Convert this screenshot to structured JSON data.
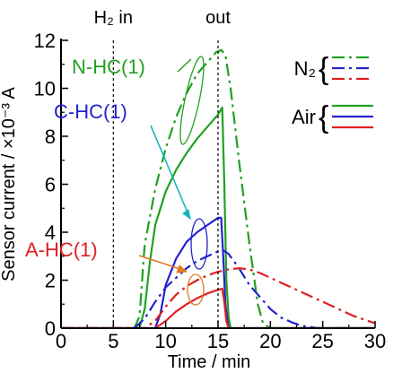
{
  "chart_data": {
    "type": "line",
    "xlabel": "Time / min",
    "ylabel": "Sensor current / ×10⁻³ A",
    "xlim": [
      0,
      30
    ],
    "ylim": [
      0,
      12
    ],
    "xticks": [
      0,
      5,
      10,
      15,
      20,
      25,
      30
    ],
    "yticks": [
      0,
      2,
      4,
      6,
      8,
      10,
      12
    ],
    "grid": false,
    "events": [
      {
        "x": 5,
        "label": "H₂ in"
      },
      {
        "x": 15,
        "label": "out"
      }
    ],
    "legend": [
      {
        "label": "N₂",
        "dash": "dash-dot",
        "brace": "{"
      },
      {
        "label": "Air",
        "dash": "solid",
        "brace": "{"
      }
    ],
    "series": [
      {
        "name": "N-HC(1)",
        "gas": "N₂",
        "color": "#22a022",
        "dash": "dash-dot",
        "x": [
          0,
          7,
          7.5,
          8,
          9,
          10,
          11,
          12,
          13,
          14,
          14.8,
          15.3,
          15.7,
          16.2,
          17,
          18,
          18.8,
          19.3,
          20,
          30
        ],
        "y": [
          0,
          0,
          0.5,
          3.5,
          5.8,
          7.5,
          8.8,
          9.8,
          10.6,
          11.1,
          11.5,
          11.6,
          11.4,
          10,
          7,
          3.5,
          1,
          0.2,
          0,
          0
        ]
      },
      {
        "name": "N-HC(1)",
        "gas": "Air",
        "color": "#22a022",
        "dash": "solid",
        "x": [
          0,
          7.5,
          8,
          8.5,
          9,
          10,
          11,
          12,
          13,
          14,
          15,
          15.4,
          15.6,
          15.8,
          16,
          16.2,
          30
        ],
        "y": [
          0,
          0,
          0.8,
          2.8,
          4.3,
          5.7,
          6.6,
          7.3,
          7.9,
          8.4,
          8.9,
          9.2,
          6,
          2,
          0.5,
          0,
          0
        ]
      },
      {
        "name": "C-HC(1)",
        "gas": "N₂",
        "color": "#2222d0",
        "dash": "dash-dot",
        "x": [
          0,
          7,
          8,
          9,
          10,
          11,
          12,
          13,
          14,
          15,
          15.5,
          16,
          17,
          18,
          19,
          20,
          21,
          22,
          23,
          24.5,
          30
        ],
        "y": [
          0,
          0,
          0.4,
          1.1,
          1.7,
          2.1,
          2.5,
          2.8,
          3.0,
          3.2,
          3.25,
          3.1,
          2.5,
          1.8,
          1.3,
          0.8,
          0.45,
          0.25,
          0.1,
          0,
          0
        ]
      },
      {
        "name": "C-HC(1)",
        "gas": "Air",
        "color": "#2222d0",
        "dash": "solid",
        "x": [
          0,
          9,
          9.5,
          10,
          11,
          12,
          13,
          14,
          15,
          15.3,
          15.5,
          15.7,
          16,
          30
        ],
        "y": [
          0,
          0,
          0.6,
          1.8,
          2.9,
          3.6,
          4.0,
          4.3,
          4.6,
          4.6,
          3.0,
          1.0,
          0,
          0
        ]
      },
      {
        "name": "A-HC(1)",
        "gas": "N₂",
        "color": "#e02020",
        "dash": "dash-dot",
        "x": [
          0,
          8,
          9,
          10,
          11,
          12,
          13,
          14,
          15,
          16,
          17,
          18,
          19,
          20,
          21,
          22,
          23,
          24,
          25,
          26,
          27,
          28,
          29,
          30
        ],
        "y": [
          0,
          0,
          0.3,
          0.9,
          1.4,
          1.75,
          2.0,
          2.2,
          2.35,
          2.45,
          2.5,
          2.45,
          2.3,
          2.1,
          1.9,
          1.7,
          1.5,
          1.3,
          1.1,
          0.9,
          0.7,
          0.5,
          0.35,
          0.2
        ]
      },
      {
        "name": "A-HC(1)",
        "gas": "Air",
        "color": "#e02020",
        "dash": "solid",
        "x": [
          0,
          9,
          10,
          11,
          12,
          13,
          14,
          15,
          15.4,
          15.6,
          15.8,
          16,
          30
        ],
        "y": [
          0,
          0,
          0.3,
          0.7,
          1.0,
          1.25,
          1.45,
          1.6,
          1.65,
          1.1,
          0.3,
          0,
          0
        ]
      }
    ],
    "labels": [
      {
        "text": "N-HC(1)",
        "color": "#22a022"
      },
      {
        "text": "C-HC(1)",
        "color": "#2222d0"
      },
      {
        "text": "A-HC(1)",
        "color": "#e02020"
      }
    ]
  }
}
